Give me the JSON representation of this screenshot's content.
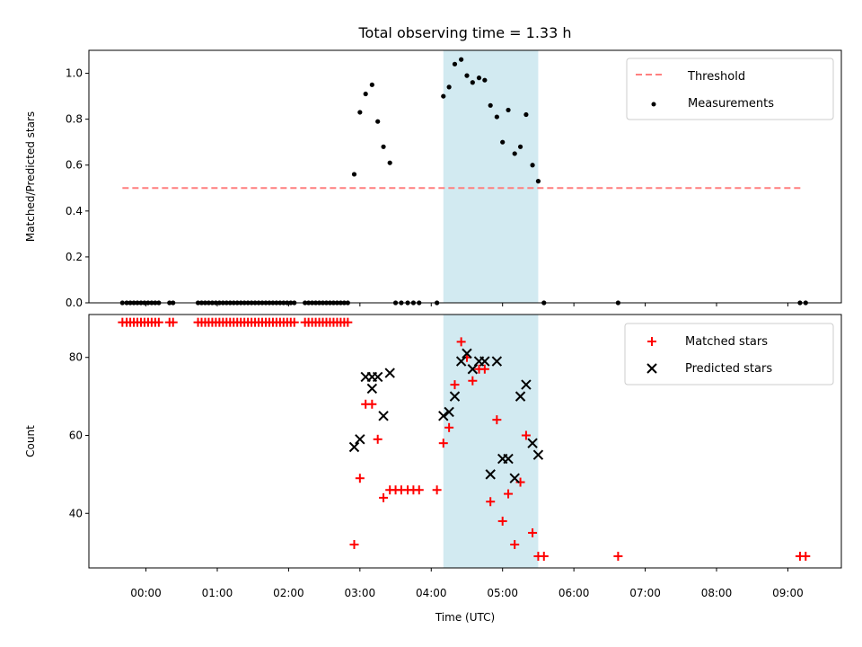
{
  "chart_data": {
    "type": "scatter",
    "title": "Total observing time = 1.33 h",
    "xlabel": "Time (UTC)",
    "x_unit": "hours UTC",
    "xlim": [
      -0.8,
      9.75
    ],
    "xticks": [
      0,
      1,
      2,
      3,
      4,
      5,
      6,
      7,
      8,
      9
    ],
    "xtick_labels": [
      "00:00",
      "01:00",
      "02:00",
      "03:00",
      "04:00",
      "05:00",
      "06:00",
      "07:00",
      "08:00",
      "09:00"
    ],
    "shaded_interval": {
      "x0": 4.17,
      "x1": 5.5,
      "color": "#add8e6"
    },
    "panels": [
      {
        "ylabel": "Matched/Predicted stars",
        "ylim": [
          0,
          1.1
        ],
        "yticks": [
          0.0,
          0.2,
          0.4,
          0.6,
          0.8,
          1.0
        ],
        "ytick_labels": [
          "0.0",
          "0.2",
          "0.4",
          "0.6",
          "0.8",
          "1.0"
        ],
        "legend_position": "top-right",
        "threshold": {
          "name": "Threshold",
          "y": 0.5,
          "x_range": [
            -0.33,
            9.2
          ],
          "color": "#ff7f7f"
        },
        "series": [
          {
            "name": "Measurements",
            "marker": "dot",
            "color": "#000000",
            "x": [
              -0.33,
              -0.27,
              -0.22,
              -0.17,
              -0.12,
              -0.07,
              -0.02,
              0.03,
              0.08,
              0.13,
              0.18,
              0.33,
              0.38,
              0.73,
              0.78,
              0.83,
              0.88,
              0.93,
              0.98,
              1.03,
              1.08,
              1.13,
              1.18,
              1.23,
              1.28,
              1.33,
              1.38,
              1.43,
              1.48,
              1.53,
              1.58,
              1.63,
              1.68,
              1.73,
              1.78,
              1.83,
              1.88,
              1.93,
              1.98,
              2.03,
              2.08,
              2.23,
              2.28,
              2.33,
              2.38,
              2.43,
              2.48,
              2.53,
              2.58,
              2.63,
              2.68,
              2.73,
              2.78,
              2.83,
              2.92,
              3.0,
              3.08,
              3.17,
              3.25,
              3.33,
              3.42,
              3.5,
              3.58,
              3.67,
              3.75,
              3.83,
              4.08,
              4.17,
              4.25,
              4.33,
              4.42,
              4.5,
              4.58,
              4.67,
              4.75,
              4.83,
              4.92,
              5.0,
              5.08,
              5.17,
              5.25,
              5.33,
              5.42,
              5.5,
              5.58,
              6.62,
              9.17,
              9.25
            ],
            "y": [
              0,
              0,
              0,
              0,
              0,
              0,
              0,
              0,
              0,
              0,
              0,
              0,
              0,
              0,
              0,
              0,
              0,
              0,
              0,
              0,
              0,
              0,
              0,
              0,
              0,
              0,
              0,
              0,
              0,
              0,
              0,
              0,
              0,
              0,
              0,
              0,
              0,
              0,
              0,
              0,
              0,
              0,
              0,
              0,
              0,
              0,
              0,
              0,
              0,
              0,
              0,
              0,
              0,
              0,
              0.56,
              0.83,
              0.91,
              0.95,
              0.79,
              0.68,
              0.61,
              0,
              0,
              0,
              0,
              0,
              0,
              0.9,
              0.94,
              1.04,
              1.06,
              0.99,
              0.96,
              0.98,
              0.97,
              0.86,
              0.81,
              0.7,
              0.84,
              0.65,
              0.68,
              0.82,
              0.6,
              0.53,
              0,
              0,
              0,
              0
            ]
          }
        ]
      },
      {
        "ylabel": "Count",
        "ylim": [
          26,
          91
        ],
        "yticks": [
          40,
          60,
          80
        ],
        "ytick_labels": [
          "40",
          "60",
          "80"
        ],
        "legend_position": "top-right",
        "series": [
          {
            "name": "Matched stars",
            "marker": "plus",
            "color": "#ff0000",
            "x": [
              -0.33,
              -0.27,
              -0.22,
              -0.17,
              -0.12,
              -0.07,
              -0.02,
              0.03,
              0.08,
              0.13,
              0.18,
              0.33,
              0.38,
              0.73,
              0.78,
              0.83,
              0.88,
              0.93,
              0.98,
              1.03,
              1.08,
              1.13,
              1.18,
              1.23,
              1.28,
              1.33,
              1.38,
              1.43,
              1.48,
              1.53,
              1.58,
              1.63,
              1.68,
              1.73,
              1.78,
              1.83,
              1.88,
              1.93,
              1.98,
              2.03,
              2.08,
              2.23,
              2.28,
              2.33,
              2.38,
              2.43,
              2.48,
              2.53,
              2.58,
              2.63,
              2.68,
              2.73,
              2.78,
              2.83,
              2.92,
              3.0,
              3.08,
              3.17,
              3.25,
              3.33,
              3.42,
              3.5,
              3.58,
              3.67,
              3.75,
              3.83,
              4.08,
              4.17,
              4.25,
              4.33,
              4.42,
              4.5,
              4.58,
              4.67,
              4.75,
              4.83,
              4.92,
              5.0,
              5.08,
              5.17,
              5.25,
              5.33,
              5.42,
              5.5,
              5.58,
              6.62,
              9.17,
              9.25
            ],
            "y": [
              89,
              89,
              89,
              89,
              89,
              89,
              89,
              89,
              89,
              89,
              89,
              89,
              89,
              89,
              89,
              89,
              89,
              89,
              89,
              89,
              89,
              89,
              89,
              89,
              89,
              89,
              89,
              89,
              89,
              89,
              89,
              89,
              89,
              89,
              89,
              89,
              89,
              89,
              89,
              89,
              89,
              89,
              89,
              89,
              89,
              89,
              89,
              89,
              89,
              89,
              89,
              89,
              89,
              89,
              32,
              49,
              68,
              68,
              59,
              44,
              46,
              46,
              46,
              46,
              46,
              46,
              46,
              58,
              62,
              73,
              84,
              80,
              74,
              77,
              77,
              43,
              64,
              38,
              45,
              32,
              48,
              60,
              35,
              29,
              29,
              29,
              29,
              29
            ]
          },
          {
            "name": "Predicted stars",
            "marker": "x",
            "color": "#000000",
            "x": [
              2.92,
              3.0,
              3.08,
              3.17,
              3.17,
              3.25,
              3.33,
              3.42,
              4.17,
              4.25,
              4.33,
              4.42,
              4.5,
              4.58,
              4.67,
              4.75,
              4.83,
              4.92,
              5.0,
              5.08,
              5.17,
              5.25,
              5.33,
              5.42,
              5.5
            ],
            "y": [
              57,
              59,
              75,
              72,
              75,
              75,
              65,
              76,
              65,
              66,
              70,
              79,
              81,
              77,
              79,
              79,
              50,
              79,
              54,
              54,
              49,
              70,
              73,
              58,
              55
            ]
          }
        ]
      }
    ]
  }
}
